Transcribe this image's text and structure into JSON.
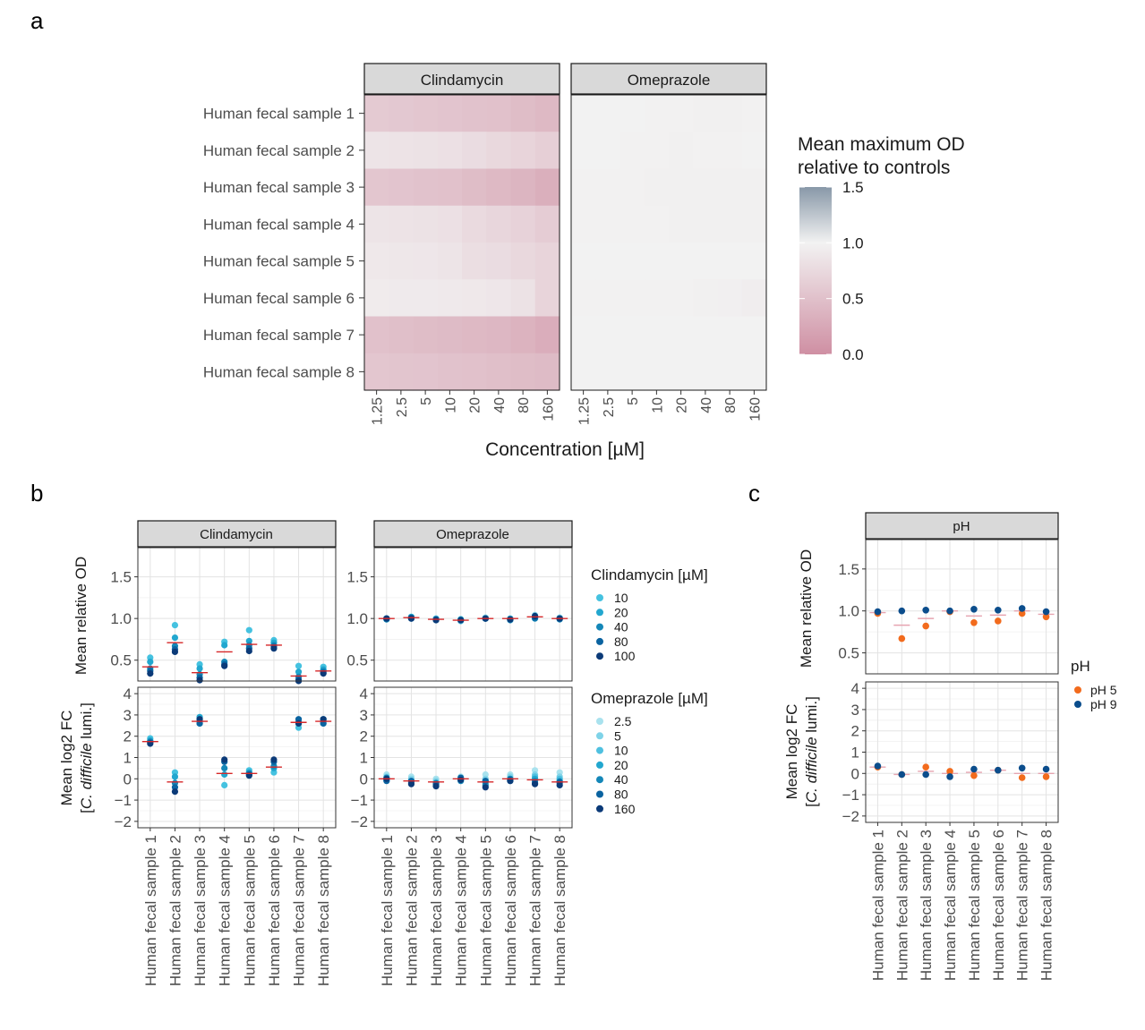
{
  "panel_letters": [
    "a",
    "b",
    "c"
  ],
  "samples": [
    "Human fecal sample 1",
    "Human fecal sample 2",
    "Human fecal sample 3",
    "Human fecal sample 4",
    "Human fecal sample 5",
    "Human fecal sample 6",
    "Human fecal sample 7",
    "Human fecal sample 8"
  ],
  "colors": {
    "heat_low": "#cf8fa3",
    "heat_mid": "#f2f2f2",
    "heat_high": "#8898a8",
    "strip_fill": "#d9d9d9",
    "mean_line": "#d62728",
    "ph5": "#f26b1d",
    "ph9": "#0b4d8c"
  },
  "chart_data": [
    {
      "type": "heatmap",
      "panel": "a",
      "facets": [
        "Clindamycin",
        "Omeprazole"
      ],
      "x_categories": [
        "1.25",
        "2.5",
        "5",
        "10",
        "20",
        "40",
        "80",
        "160"
      ],
      "xlabel": "Concentration  [µM]",
      "legend_title": [
        "Mean maximum OD",
        "relative to controls"
      ],
      "legend_ticks": [
        "1.5",
        "1.0",
        "0.5",
        "0.0"
      ],
      "scale_range": [
        0,
        1.5
      ],
      "values": {
        "Clindamycin": [
          [
            0.6,
            0.58,
            0.56,
            0.54,
            0.52,
            0.5,
            0.46,
            0.42
          ],
          [
            0.86,
            0.85,
            0.84,
            0.82,
            0.78,
            0.74,
            0.7,
            0.65
          ],
          [
            0.56,
            0.54,
            0.52,
            0.5,
            0.46,
            0.42,
            0.38,
            0.32
          ],
          [
            0.86,
            0.85,
            0.84,
            0.82,
            0.76,
            0.72,
            0.68,
            0.62
          ],
          [
            0.9,
            0.89,
            0.88,
            0.86,
            0.8,
            0.78,
            0.74,
            0.7
          ],
          [
            0.93,
            0.92,
            0.92,
            0.91,
            0.9,
            0.88,
            0.84,
            0.7
          ],
          [
            0.5,
            0.48,
            0.46,
            0.44,
            0.42,
            0.4,
            0.36,
            0.3
          ],
          [
            0.56,
            0.55,
            0.54,
            0.52,
            0.5,
            0.48,
            0.46,
            0.44
          ]
        ],
        "Omeprazole": [
          [
            1.0,
            1.0,
            1.0,
            0.99,
            0.99,
            0.98,
            0.98,
            0.99
          ],
          [
            1.0,
            1.0,
            0.99,
            0.99,
            0.98,
            0.99,
            0.99,
            1.0
          ],
          [
            0.99,
            0.99,
            0.99,
            0.98,
            0.98,
            0.98,
            0.98,
            0.98
          ],
          [
            0.99,
            0.99,
            0.99,
            0.99,
            0.98,
            0.98,
            0.98,
            0.98
          ],
          [
            1.0,
            1.0,
            1.0,
            1.0,
            1.0,
            1.0,
            1.0,
            1.0
          ],
          [
            0.99,
            0.99,
            0.99,
            0.99,
            0.99,
            0.98,
            0.97,
            0.95
          ],
          [
            1.0,
            1.0,
            1.0,
            1.0,
            1.0,
            1.0,
            1.0,
            1.0
          ],
          [
            1.0,
            1.0,
            1.0,
            1.0,
            1.0,
            1.0,
            1.0,
            1.0
          ]
        ]
      }
    },
    {
      "type": "scatter",
      "panel": "b",
      "facets": [
        "Clindamycin",
        "Omeprazole"
      ],
      "rows": [
        {
          "ylabel": [
            "Mean relative OD"
          ],
          "ylim": [
            0.25,
            1.85
          ],
          "yticks": [
            "0.5",
            "1.0",
            "1.5"
          ]
        },
        {
          "ylabel": [
            "Mean log2 FC",
            "[C. difficile lumi.]"
          ],
          "ylim": [
            -2.3,
            4.3
          ],
          "yticks": [
            "−2",
            "−1",
            "0",
            "1",
            "2",
            "3",
            "4"
          ]
        }
      ],
      "legends": [
        {
          "title": "Clindamycin  [µM]",
          "labels": [
            "10",
            "20",
            "40",
            "80",
            "100"
          ],
          "colors": [
            "#45c2e0",
            "#22a7cf",
            "#1487b8",
            "#0a63a0",
            "#0b3a78"
          ]
        },
        {
          "title": "Omeprazole  [µM]",
          "labels": [
            "2.5",
            "5",
            "10",
            "20",
            "40",
            "80",
            "160"
          ],
          "colors": [
            "#a9e2ee",
            "#7fd3e8",
            "#4fc0e0",
            "#22a7cf",
            "#1487b8",
            "#0a63a0",
            "#0b3a78"
          ]
        }
      ],
      "od": {
        "Clindamycin": {
          "means": [
            0.42,
            0.71,
            0.35,
            0.6,
            0.69,
            0.68,
            0.31,
            0.37
          ],
          "points": [
            [
              0.53,
              0.48,
              0.4,
              0.37,
              0.34
            ],
            [
              0.92,
              0.77,
              0.67,
              0.63,
              0.6
            ],
            [
              0.45,
              0.4,
              0.33,
              0.29,
              0.26
            ],
            [
              0.72,
              0.68,
              0.48,
              0.45,
              0.43
            ],
            [
              0.86,
              0.73,
              0.68,
              0.64,
              0.61
            ],
            [
              0.74,
              0.71,
              0.68,
              0.66,
              0.64
            ],
            [
              0.43,
              0.36,
              0.3,
              0.27,
              0.25
            ],
            [
              0.42,
              0.39,
              0.37,
              0.35,
              0.34
            ]
          ]
        },
        "Omeprazole": {
          "means": [
            1.0,
            1.01,
            0.99,
            0.98,
            1.0,
            1.0,
            1.02,
            1.0
          ],
          "points": [
            [
              1.0,
              1.0,
              0.99,
              1.0,
              0.99,
              1.0,
              1.0
            ],
            [
              1.02,
              1.01,
              1.0,
              1.02,
              1.0,
              1.01,
              1.0
            ],
            [
              0.99,
              0.99,
              1.0,
              0.98,
              0.99,
              0.99,
              0.98
            ],
            [
              0.98,
              0.99,
              0.97,
              0.99,
              0.98,
              0.98,
              0.98
            ],
            [
              1.0,
              1.01,
              1.0,
              1.0,
              1.0,
              1.0,
              1.0
            ],
            [
              1.0,
              0.99,
              1.0,
              0.99,
              0.98,
              0.99,
              0.99
            ],
            [
              1.03,
              1.04,
              1.01,
              1.02,
              1.0,
              1.01,
              1.03
            ],
            [
              1.0,
              1.01,
              1.0,
              1.0,
              0.99,
              1.0,
              1.0
            ]
          ]
        }
      },
      "fc": {
        "Clindamycin": {
          "means": [
            1.75,
            -0.15,
            2.7,
            0.25,
            0.25,
            0.55,
            2.65,
            2.7
          ],
          "points": [
            [
              1.9,
              1.8,
              1.75,
              1.7,
              1.65
            ],
            [
              0.3,
              0.1,
              -0.2,
              -0.4,
              -0.6
            ],
            [
              2.6,
              2.9,
              2.7,
              2.6,
              2.8
            ],
            [
              -0.3,
              0.2,
              0.5,
              0.8,
              0.9
            ],
            [
              0.4,
              0.3,
              0.25,
              0.2,
              0.15
            ],
            [
              0.3,
              0.5,
              0.6,
              0.8,
              0.9
            ],
            [
              2.4,
              2.6,
              2.7,
              2.8,
              2.6
            ],
            [
              2.6,
              2.8,
              2.7,
              2.6,
              2.8
            ]
          ]
        },
        "Omeprazole": {
          "means": [
            0.0,
            -0.1,
            -0.15,
            0.0,
            -0.15,
            0.0,
            -0.05,
            -0.15
          ],
          "points": [
            [
              0.2,
              0.1,
              0.0,
              -0.05,
              0.05,
              -0.1,
              0.0
            ],
            [
              0.1,
              0.0,
              -0.1,
              -0.2,
              -0.15,
              -0.1,
              -0.25
            ],
            [
              0.0,
              -0.1,
              -0.2,
              -0.3,
              -0.2,
              -0.25,
              -0.35
            ],
            [
              0.1,
              0.0,
              -0.05,
              0.0,
              -0.1,
              0.05,
              -0.05
            ],
            [
              0.2,
              0.0,
              -0.1,
              -0.2,
              -0.3,
              -0.1,
              -0.4
            ],
            [
              0.2,
              0.1,
              0.0,
              -0.1,
              0.0,
              -0.05,
              -0.1
            ],
            [
              0.4,
              0.2,
              0.1,
              0.0,
              -0.1,
              -0.2,
              -0.25
            ],
            [
              0.3,
              0.1,
              0.0,
              -0.1,
              -0.2,
              -0.15,
              -0.3
            ]
          ]
        }
      }
    },
    {
      "type": "scatter",
      "panel": "c",
      "facet": "pH",
      "legend": {
        "title": "pH",
        "labels": [
          "pH 5",
          "pH 9"
        ]
      },
      "rows": [
        {
          "ylabel": [
            "Mean relative OD"
          ],
          "ylim": [
            0.25,
            1.85
          ],
          "yticks": [
            "0.5",
            "1.0",
            "1.5"
          ]
        },
        {
          "ylabel": [
            "Mean log2 FC",
            "[C. difficile lumi.]"
          ],
          "ylim": [
            -2.3,
            4.3
          ],
          "yticks": [
            "−2",
            "−1",
            "0",
            "1",
            "2",
            "3",
            "4"
          ]
        }
      ],
      "od": {
        "means": [
          0.98,
          0.83,
          0.91,
          1.0,
          0.94,
          0.95,
          1.0,
          0.96
        ],
        "ph5": [
          0.97,
          0.67,
          0.82,
          0.99,
          0.86,
          0.88,
          0.97,
          0.93
        ],
        "ph9": [
          0.99,
          1.0,
          1.01,
          1.0,
          1.02,
          1.01,
          1.03,
          0.99
        ]
      },
      "fc": {
        "means": [
          0.3,
          -0.05,
          0.1,
          0.0,
          0.05,
          0.15,
          0.0,
          0.0
        ],
        "ph5": [
          0.3,
          -0.05,
          0.3,
          0.1,
          -0.1,
          0.15,
          -0.2,
          -0.15
        ],
        "ph9": [
          0.35,
          -0.05,
          -0.05,
          -0.15,
          0.2,
          0.15,
          0.25,
          0.2
        ]
      }
    }
  ]
}
